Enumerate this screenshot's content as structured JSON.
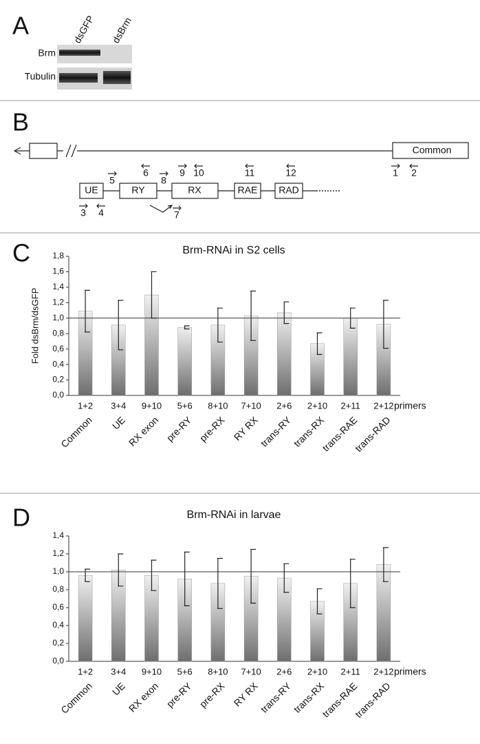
{
  "panel_a": {
    "letter": "A",
    "lanes": [
      "dsGFP",
      "dsBrm"
    ],
    "rows": [
      "Brm",
      "Tubulin"
    ]
  },
  "panel_b": {
    "letter": "B",
    "common": "Common",
    "exons": [
      "UE",
      "RY",
      "RX",
      "RAE",
      "RAD"
    ],
    "primers": [
      "1",
      "2",
      "3",
      "4",
      "5",
      "6",
      "7",
      "8",
      "9",
      "10",
      "11",
      "12"
    ]
  },
  "chart_data": [
    {
      "type": "bar",
      "panel": "C",
      "title": "Brm-RNAi in S2 cells",
      "y_label": "Fold dsBrm/dsGFP",
      "categories": [
        "Common",
        "UE",
        "RX exon",
        "pre-RY",
        "pre-RX",
        "RY RX",
        "trans-RY",
        "trans-RX",
        "trans-RAE",
        "trans-RAD"
      ],
      "primers": [
        "1+2",
        "3+4",
        "9+10",
        "5+6",
        "8+10",
        "7+10",
        "2+6",
        "2+10",
        "2+11",
        "2+12"
      ],
      "primers_label": "primers",
      "values": [
        1.09,
        0.91,
        1.3,
        0.88,
        0.91,
        1.03,
        1.07,
        0.67,
        1.0,
        0.92
      ],
      "errors": [
        0.27,
        0.32,
        0.3,
        0.02,
        0.22,
        0.32,
        0.14,
        0.14,
        0.13,
        0.31
      ],
      "color": "#6e6e6e",
      "hline": 1,
      "ylim": [
        0,
        1.8
      ],
      "yticks": [
        {
          "value": 0,
          "label": "0,0"
        },
        {
          "value": 0.2,
          "label": "0,2"
        },
        {
          "value": 0.4,
          "label": "0,4"
        },
        {
          "value": 0.6,
          "label": "0,6"
        },
        {
          "value": 0.8,
          "label": "0,8"
        },
        {
          "value": 1,
          "label": "1,0"
        },
        {
          "value": 1.2,
          "label": "1,2"
        },
        {
          "value": 1.4,
          "label": "1,4"
        },
        {
          "value": 1.6,
          "label": "1,6"
        },
        {
          "value": 1.8,
          "label": "1,8"
        }
      ]
    },
    {
      "type": "bar",
      "panel": "D",
      "title": "Brm-RNAi in larvae",
      "categories": [
        "Common",
        "UE",
        "RX exon",
        "pre-RY",
        "pre-RX",
        "RY RX",
        "trans-RY",
        "trans-RX",
        "trans-RAE",
        "trans-RAD"
      ],
      "primers": [
        "1+2",
        "3+4",
        "9+10",
        "5+6",
        "8+10",
        "7+10",
        "2+6",
        "2+10",
        "2+11",
        "2+12"
      ],
      "primers_label": "primers",
      "values": [
        0.96,
        1.02,
        0.96,
        0.92,
        0.87,
        0.95,
        0.93,
        0.67,
        0.87,
        1.08
      ],
      "errors": [
        0.07,
        0.18,
        0.17,
        0.3,
        0.28,
        0.3,
        0.16,
        0.14,
        0.27,
        0.19
      ],
      "color": "#6e6e6e",
      "hline": 1,
      "ylim": [
        0,
        1.4
      ],
      "yticks": [
        {
          "value": 0,
          "label": "0,0"
        },
        {
          "value": 0.2,
          "label": "0,2"
        },
        {
          "value": 0.4,
          "label": "0,4"
        },
        {
          "value": 0.6,
          "label": "0,6"
        },
        {
          "value": 0.8,
          "label": "0,8"
        },
        {
          "value": 1,
          "label": "1,0"
        },
        {
          "value": 1.2,
          "label": "1,2"
        },
        {
          "value": 1.4,
          "label": "1,4"
        }
      ]
    }
  ]
}
